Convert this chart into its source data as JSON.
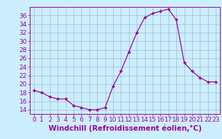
{
  "x": [
    0,
    1,
    2,
    3,
    4,
    5,
    6,
    7,
    8,
    9,
    10,
    11,
    12,
    13,
    14,
    15,
    16,
    17,
    18,
    19,
    20,
    21,
    22,
    23
  ],
  "y": [
    18.5,
    18.0,
    17.0,
    16.5,
    16.5,
    15.0,
    14.5,
    14.0,
    14.0,
    14.5,
    19.5,
    23.0,
    27.5,
    32.0,
    35.5,
    36.5,
    37.0,
    37.5,
    35.0,
    25.0,
    23.0,
    21.5,
    20.5,
    20.5
  ],
  "line_color": "#990099",
  "marker": "D",
  "marker_size": 2.2,
  "bg_color": "#cceeff",
  "grid_color": "#99bbcc",
  "tick_color": "#990099",
  "label_color": "#990099",
  "xlabel": "Windchill (Refroidissement éolien,°C)",
  "xlim": [
    -0.5,
    23.5
  ],
  "ylim": [
    13,
    38
  ],
  "yticks": [
    14,
    16,
    18,
    20,
    22,
    24,
    26,
    28,
    30,
    32,
    34,
    36
  ],
  "xticks": [
    0,
    1,
    2,
    3,
    4,
    5,
    6,
    7,
    8,
    9,
    10,
    11,
    12,
    13,
    14,
    15,
    16,
    17,
    18,
    19,
    20,
    21,
    22,
    23
  ],
  "font_size": 6.5,
  "xlabel_font_size": 7.5
}
